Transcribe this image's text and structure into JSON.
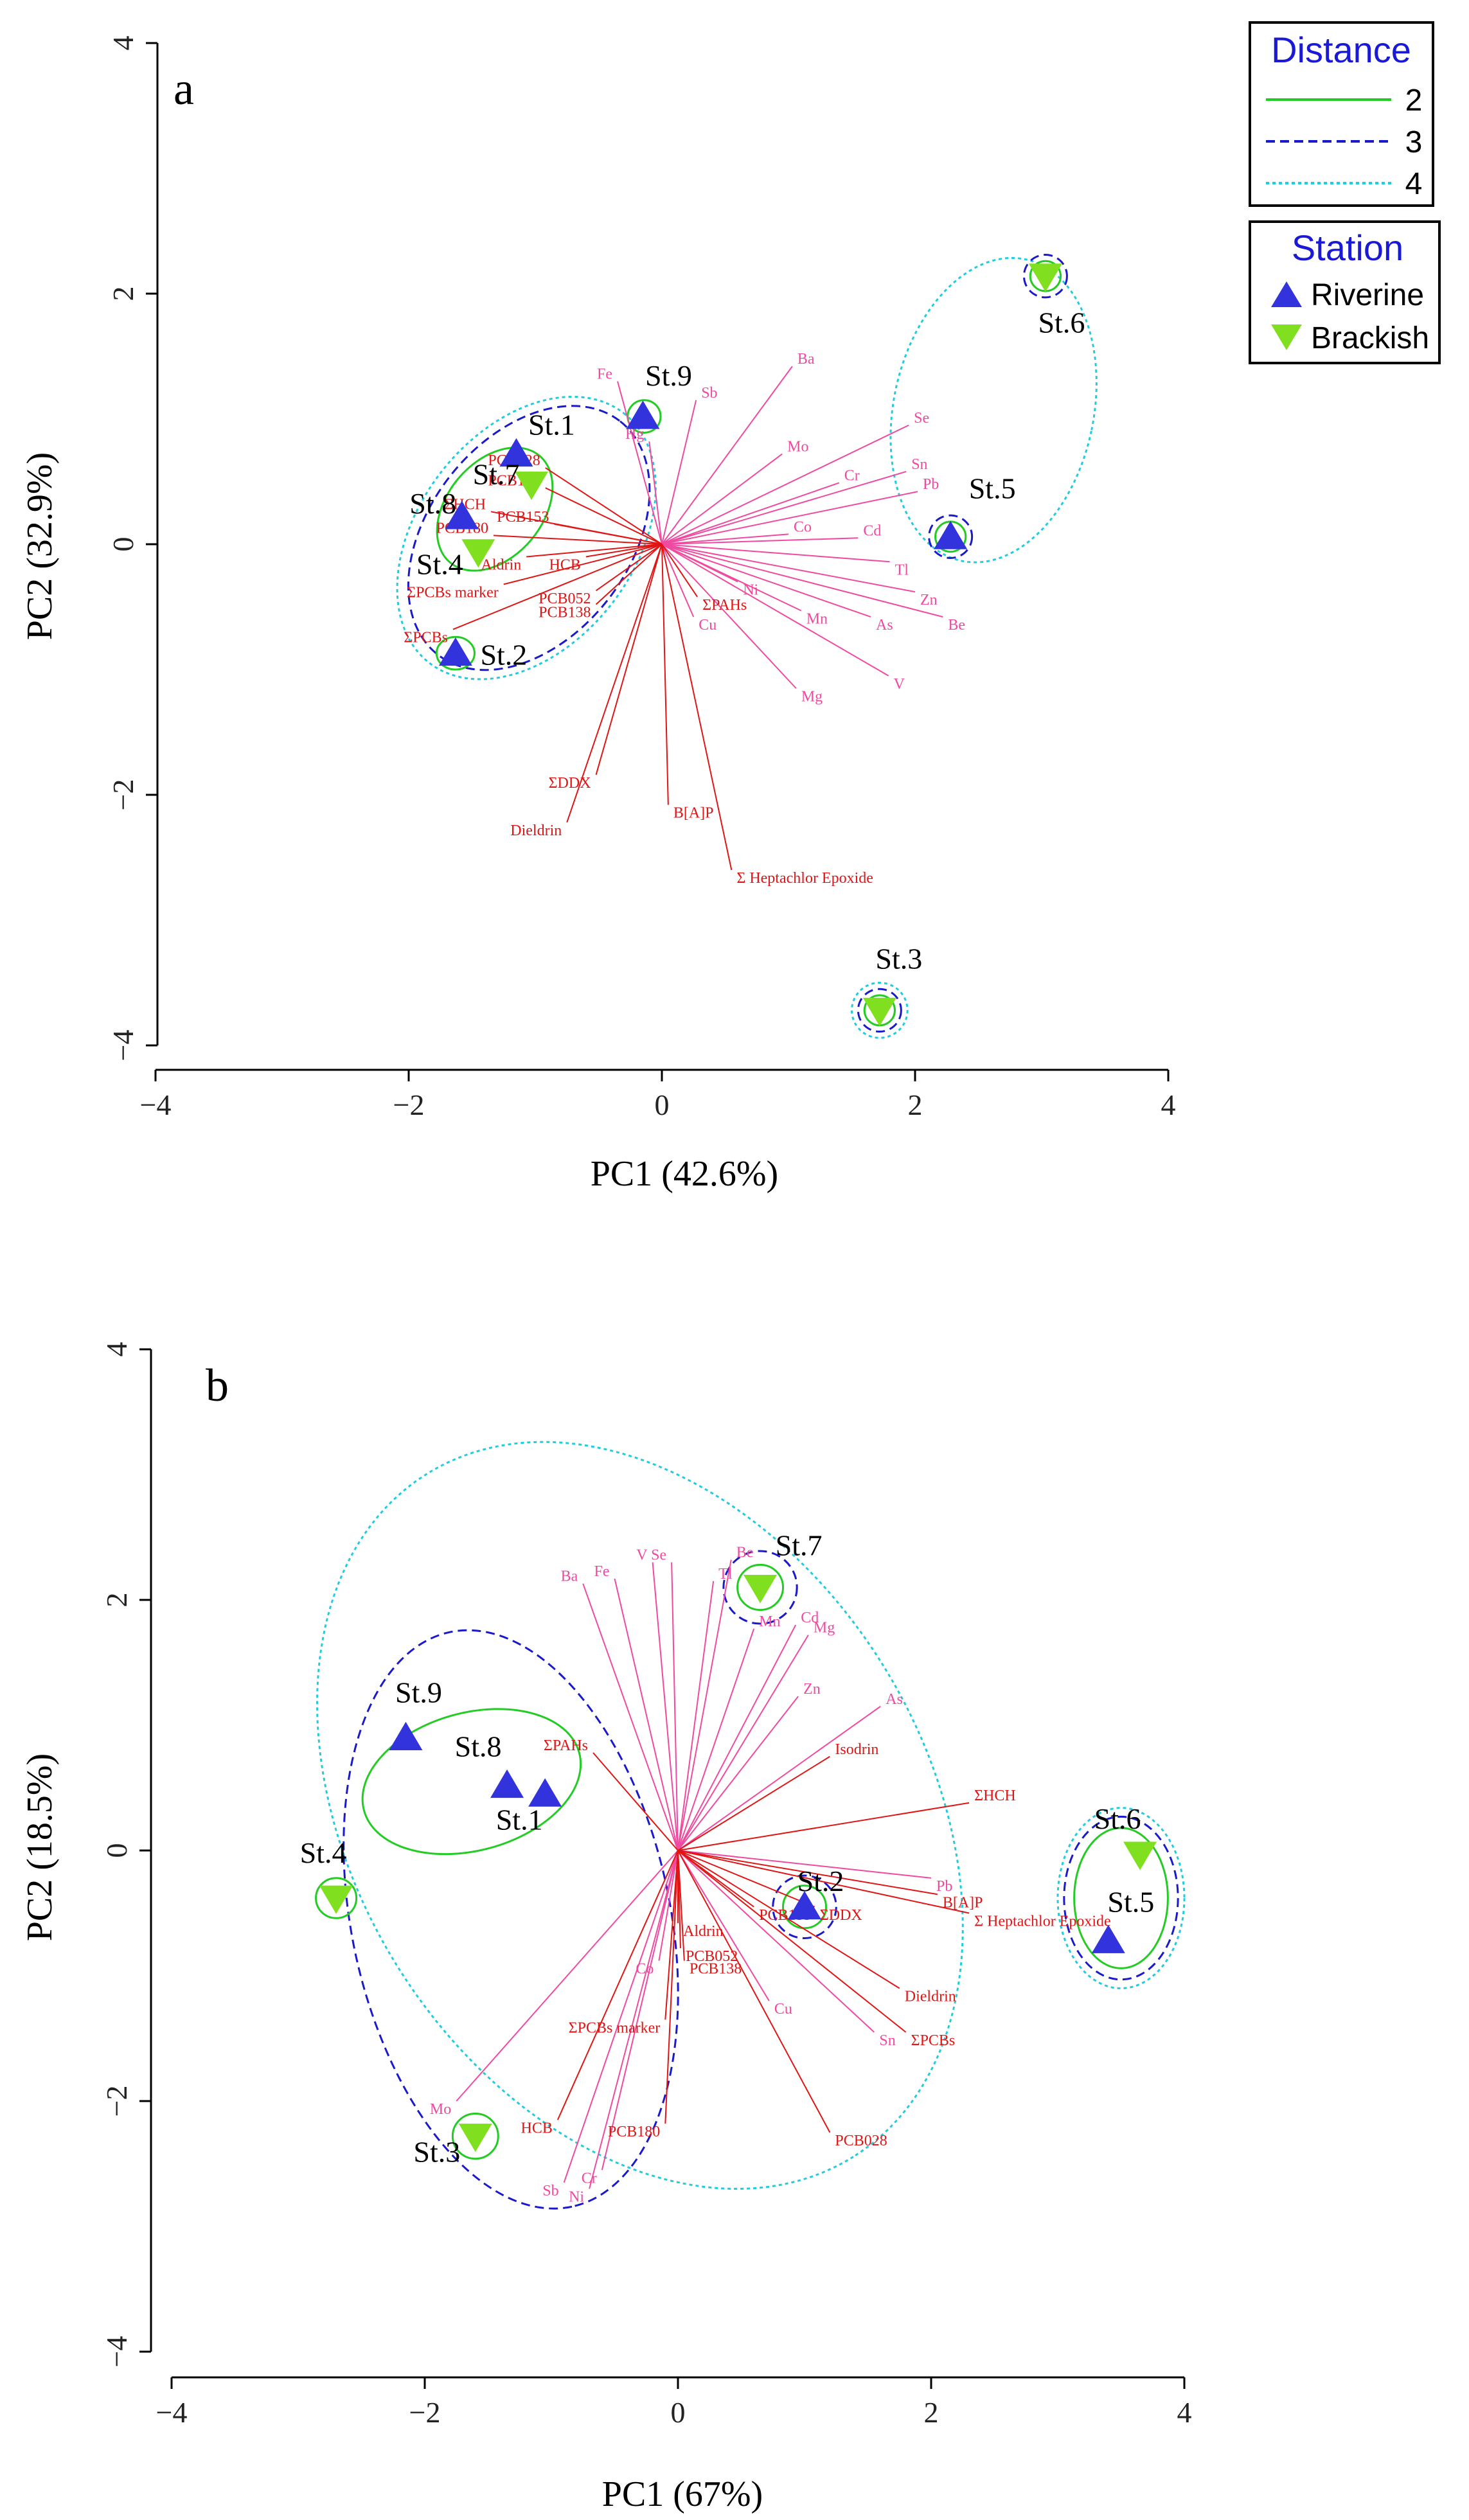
{
  "colors": {
    "metal_vector": "#f04aa0",
    "organic_vector": "#e01515",
    "riverine": "#3333dd",
    "brackish": "#80e020",
    "distance_2": "#22cc22",
    "distance_3": "#1a1acc",
    "distance_4": "#22ccdd"
  },
  "legend": {
    "distance_title": "Distance",
    "distance_items": [
      {
        "label": "2",
        "style": "solid",
        "color": "#22cc22"
      },
      {
        "label": "3",
        "style": "dashed",
        "color": "#1a1acc"
      },
      {
        "label": "4",
        "style": "dotted",
        "color": "#22ccdd"
      }
    ],
    "station_title": "Station",
    "station_items": [
      {
        "label": "Riverine",
        "marker": "triangle-up"
      },
      {
        "label": "Brackish",
        "marker": "triangle-down"
      }
    ]
  },
  "chart_data": [
    {
      "type": "scatter",
      "panel_label": "a",
      "xlabel": "PC1 (42.6%)",
      "ylabel": "PC2 (32.9%)",
      "xlim": [
        -4,
        4
      ],
      "ylim": [
        -4,
        4
      ],
      "xticks": [
        -4,
        -2,
        0,
        2,
        4
      ],
      "yticks": [
        -4,
        -2,
        0,
        2,
        4
      ],
      "stations": [
        {
          "label": "St.1",
          "type": "Riverine",
          "x": -1.15,
          "y": 0.72
        },
        {
          "label": "St.2",
          "type": "Riverine",
          "x": -1.63,
          "y": -0.87
        },
        {
          "label": "St.3",
          "type": "Brackish",
          "x": 1.72,
          "y": -3.72
        },
        {
          "label": "St.4",
          "type": "Brackish",
          "x": -1.45,
          "y": -0.06
        },
        {
          "label": "St.5",
          "type": "Riverine",
          "x": 2.28,
          "y": 0.06
        },
        {
          "label": "St.6",
          "type": "Brackish",
          "x": 3.03,
          "y": 2.14
        },
        {
          "label": "St.7",
          "type": "Brackish",
          "x": -1.03,
          "y": 0.48
        },
        {
          "label": "St.8",
          "type": "Riverine",
          "x": -1.58,
          "y": 0.22
        },
        {
          "label": "St.9",
          "type": "Riverine",
          "x": -0.15,
          "y": 1.02
        }
      ],
      "loadings": [
        {
          "name": "Ba",
          "group": "metal",
          "x": 1.03,
          "y": 1.42
        },
        {
          "name": "Fe",
          "group": "metal",
          "x": -0.35,
          "y": 1.3
        },
        {
          "name": "Sb",
          "group": "metal",
          "x": 0.27,
          "y": 1.15
        },
        {
          "name": "Hg",
          "group": "metal",
          "x": -0.1,
          "y": 0.82
        },
        {
          "name": "Mo",
          "group": "metal",
          "x": 0.95,
          "y": 0.72
        },
        {
          "name": "Se",
          "group": "metal",
          "x": 1.95,
          "y": 0.95
        },
        {
          "name": "Sn",
          "group": "metal",
          "x": 1.93,
          "y": 0.58
        },
        {
          "name": "Cr",
          "group": "metal",
          "x": 1.4,
          "y": 0.49
        },
        {
          "name": "Pb",
          "group": "metal",
          "x": 2.02,
          "y": 0.42
        },
        {
          "name": "Co",
          "group": "metal",
          "x": 1.0,
          "y": 0.08
        },
        {
          "name": "Cd",
          "group": "metal",
          "x": 1.55,
          "y": 0.05
        },
        {
          "name": "Tl",
          "group": "metal",
          "x": 1.8,
          "y": -0.14
        },
        {
          "name": "Ni",
          "group": "metal",
          "x": 0.6,
          "y": -0.3
        },
        {
          "name": "Zn",
          "group": "metal",
          "x": 2.0,
          "y": -0.38
        },
        {
          "name": "Mn",
          "group": "metal",
          "x": 1.1,
          "y": -0.53
        },
        {
          "name": "As",
          "group": "metal",
          "x": 1.65,
          "y": -0.58
        },
        {
          "name": "Be",
          "group": "metal",
          "x": 2.22,
          "y": -0.58
        },
        {
          "name": "Cu",
          "group": "metal",
          "x": 0.25,
          "y": -0.58
        },
        {
          "name": "V",
          "group": "metal",
          "x": 1.79,
          "y": -1.05
        },
        {
          "name": "Mg",
          "group": "metal",
          "x": 1.06,
          "y": -1.15
        },
        {
          "name": "PCB028",
          "group": "organic",
          "x": -0.92,
          "y": 0.61
        },
        {
          "name": "PCB101",
          "group": "organic",
          "x": -0.92,
          "y": 0.45
        },
        {
          "name": "ΣHCH",
          "group": "organic",
          "x": -1.35,
          "y": 0.26
        },
        {
          "name": "PCB153",
          "group": "organic",
          "x": -0.85,
          "y": 0.16
        },
        {
          "name": "PCB180",
          "group": "organic",
          "x": -1.33,
          "y": 0.07
        },
        {
          "name": "Aldrin",
          "group": "organic",
          "x": -1.07,
          "y": -0.1
        },
        {
          "name": "HCB",
          "group": "organic",
          "x": -0.6,
          "y": -0.1
        },
        {
          "name": "ΣPCBs marker",
          "group": "organic",
          "x": -1.25,
          "y": -0.32
        },
        {
          "name": "PCB052",
          "group": "organic",
          "x": -0.52,
          "y": -0.37
        },
        {
          "name": "PCB138",
          "group": "organic",
          "x": -0.52,
          "y": -0.48
        },
        {
          "name": "ΣPAHs",
          "group": "organic",
          "x": 0.28,
          "y": -0.42
        },
        {
          "name": "ΣPCBs",
          "group": "organic",
          "x": -1.65,
          "y": -0.68
        },
        {
          "name": "ΣDDX",
          "group": "organic",
          "x": -0.52,
          "y": -1.84
        },
        {
          "name": "B[A]P",
          "group": "organic",
          "x": 0.05,
          "y": -2.08
        },
        {
          "name": "Dieldrin",
          "group": "organic",
          "x": -0.75,
          "y": -2.22
        },
        {
          "name": "Σ Heptachlor Epoxide",
          "group": "organic",
          "x": 0.55,
          "y": -2.6
        }
      ],
      "ellipses": [
        {
          "distance": "4",
          "cx": -1.07,
          "cy": 0.05,
          "rx": 1.25,
          "ry": 0.86,
          "angle": -52
        },
        {
          "distance": "3",
          "cx": -1.05,
          "cy": 0.05,
          "rx": 1.17,
          "ry": 0.8,
          "angle": -52
        },
        {
          "distance": "2",
          "cx": -1.32,
          "cy": 0.28,
          "rx": 0.55,
          "ry": 0.38,
          "angle": -50
        },
        {
          "distance": "2",
          "cx": -0.14,
          "cy": 1.02,
          "rx": 0.13,
          "ry": 0.13,
          "angle": 0
        },
        {
          "distance": "2",
          "cx": -1.63,
          "cy": -0.87,
          "rx": 0.15,
          "ry": 0.13,
          "angle": 0
        },
        {
          "distance": "4",
          "cx": 2.62,
          "cy": 1.07,
          "rx": 0.79,
          "ry": 1.23,
          "angle": 12
        },
        {
          "distance": "4",
          "cx": 1.72,
          "cy": -3.72,
          "rx": 0.22,
          "ry": 0.22,
          "angle": 0
        },
        {
          "distance": "3",
          "cx": 1.72,
          "cy": -3.72,
          "rx": 0.17,
          "ry": 0.17,
          "angle": 0
        },
        {
          "distance": "2",
          "cx": 1.72,
          "cy": -3.72,
          "rx": 0.12,
          "ry": 0.12,
          "angle": 0
        },
        {
          "distance": "3",
          "cx": 3.03,
          "cy": 2.14,
          "rx": 0.17,
          "ry": 0.17,
          "angle": 0
        },
        {
          "distance": "2",
          "cx": 3.03,
          "cy": 2.14,
          "rx": 0.12,
          "ry": 0.12,
          "angle": 0
        },
        {
          "distance": "3",
          "cx": 2.28,
          "cy": 0.06,
          "rx": 0.17,
          "ry": 0.17,
          "angle": 0
        },
        {
          "distance": "2",
          "cx": 2.28,
          "cy": 0.06,
          "rx": 0.12,
          "ry": 0.12,
          "angle": 0
        }
      ]
    },
    {
      "type": "scatter",
      "panel_label": "b",
      "xlabel": "PC1 (67%)",
      "ylabel": "PC2 (18.5%)",
      "xlim": [
        -4,
        4
      ],
      "ylim": [
        -4,
        4
      ],
      "xticks": [
        -4,
        -2,
        0,
        2,
        4
      ],
      "yticks": [
        -4,
        -2,
        0,
        2,
        4
      ],
      "stations": [
        {
          "label": "St.1",
          "type": "Riverine",
          "x": -1.05,
          "y": 0.45
        },
        {
          "label": "St.2",
          "type": "Riverine",
          "x": 1.0,
          "y": -0.45
        },
        {
          "label": "St.3",
          "type": "Brackish",
          "x": -1.6,
          "y": -2.28
        },
        {
          "label": "St.4",
          "type": "Brackish",
          "x": -2.7,
          "y": -0.38
        },
        {
          "label": "St.5",
          "type": "Riverine",
          "x": 3.4,
          "y": -0.72
        },
        {
          "label": "St.6",
          "type": "Brackish",
          "x": 3.65,
          "y": -0.03
        },
        {
          "label": "St.7",
          "type": "Brackish",
          "x": 0.65,
          "y": 2.1
        },
        {
          "label": "St.8",
          "type": "Riverine",
          "x": -1.35,
          "y": 0.52
        },
        {
          "label": "St.9",
          "type": "Riverine",
          "x": -2.15,
          "y": 0.9
        }
      ],
      "loadings": [
        {
          "name": "Ba",
          "group": "metal",
          "x": -0.75,
          "y": 2.13
        },
        {
          "name": "Fe",
          "group": "metal",
          "x": -0.5,
          "y": 2.17
        },
        {
          "name": "V",
          "group": "metal",
          "x": -0.2,
          "y": 2.3
        },
        {
          "name": "Se",
          "group": "metal",
          "x": -0.05,
          "y": 2.3
        },
        {
          "name": "Be",
          "group": "metal",
          "x": 0.42,
          "y": 2.32
        },
        {
          "name": "Tl",
          "group": "metal",
          "x": 0.28,
          "y": 2.15
        },
        {
          "name": "Mn",
          "group": "metal",
          "x": 0.6,
          "y": 1.77
        },
        {
          "name": "Cd",
          "group": "metal",
          "x": 0.93,
          "y": 1.8
        },
        {
          "name": "Mg",
          "group": "metal",
          "x": 1.03,
          "y": 1.72
        },
        {
          "name": "Zn",
          "group": "metal",
          "x": 0.95,
          "y": 1.23
        },
        {
          "name": "As",
          "group": "metal",
          "x": 1.6,
          "y": 1.15
        },
        {
          "name": "Pb",
          "group": "metal",
          "x": 2.0,
          "y": -0.22
        },
        {
          "name": "Cu",
          "group": "metal",
          "x": 0.72,
          "y": -1.2
        },
        {
          "name": "Sn",
          "group": "metal",
          "x": 1.55,
          "y": -1.45
        },
        {
          "name": "Co",
          "group": "metal",
          "x": -0.15,
          "y": -0.88
        },
        {
          "name": "Mo",
          "group": "metal",
          "x": -1.75,
          "y": -2.0
        },
        {
          "name": "Sb",
          "group": "metal",
          "x": -0.9,
          "y": -2.65
        },
        {
          "name": "Ni",
          "group": "metal",
          "x": -0.7,
          "y": -2.7
        },
        {
          "name": "Cr",
          "group": "metal",
          "x": -0.6,
          "y": -2.55
        },
        {
          "name": "ΣPAHs",
          "group": "organic",
          "x": -0.67,
          "y": 0.78
        },
        {
          "name": "Isodrin",
          "group": "organic",
          "x": 1.2,
          "y": 0.75
        },
        {
          "name": "ΣHCH",
          "group": "organic",
          "x": 2.3,
          "y": 0.38
        },
        {
          "name": "B[A]P",
          "group": "organic",
          "x": 2.05,
          "y": -0.35
        },
        {
          "name": "Σ Heptachlor Epoxide",
          "group": "organic",
          "x": 2.3,
          "y": -0.5
        },
        {
          "name": "ΣDDX",
          "group": "organic",
          "x": 1.08,
          "y": -0.45
        },
        {
          "name": "PCB153",
          "group": "organic",
          "x": 0.6,
          "y": -0.45
        },
        {
          "name": "Aldrin",
          "group": "organic",
          "x": 0.0,
          "y": -0.58
        },
        {
          "name": "PCB052",
          "group": "organic",
          "x": 0.02,
          "y": -0.78
        },
        {
          "name": "PCB138",
          "group": "organic",
          "x": 0.05,
          "y": -0.88
        },
        {
          "name": "ΣPCBs marker",
          "group": "organic",
          "x": -0.1,
          "y": -1.35
        },
        {
          "name": "Dieldrin",
          "group": "organic",
          "x": 1.75,
          "y": -1.1
        },
        {
          "name": "ΣPCBs",
          "group": "organic",
          "x": 1.8,
          "y": -1.45
        },
        {
          "name": "HCB",
          "group": "organic",
          "x": -0.95,
          "y": -2.15
        },
        {
          "name": "PCB180",
          "group": "organic",
          "x": -0.1,
          "y": -2.18
        },
        {
          "name": "PCB028",
          "group": "organic",
          "x": 1.2,
          "y": -2.25
        }
      ],
      "ellipses": [
        {
          "distance": "4",
          "cx": -0.3,
          "cy": 0.28,
          "rx": 3.18,
          "ry": 2.28,
          "angle": 58
        },
        {
          "distance": "3",
          "cx": -1.32,
          "cy": -0.55,
          "rx": 2.32,
          "ry": 1.27,
          "angle": 78
        },
        {
          "distance": "2",
          "cx": -1.63,
          "cy": 0.55,
          "rx": 0.88,
          "ry": 0.55,
          "angle": -15
        },
        {
          "distance": "2",
          "cx": -2.7,
          "cy": -0.38,
          "rx": 0.16,
          "ry": 0.16,
          "angle": 0
        },
        {
          "distance": "2",
          "cx": -1.6,
          "cy": -2.28,
          "rx": 0.18,
          "ry": 0.18,
          "angle": 0
        },
        {
          "distance": "3",
          "cx": 0.65,
          "cy": 2.1,
          "rx": 0.29,
          "ry": 0.29,
          "angle": 0
        },
        {
          "distance": "2",
          "cx": 0.65,
          "cy": 2.1,
          "rx": 0.18,
          "ry": 0.18,
          "angle": 0
        },
        {
          "distance": "3",
          "cx": 1.0,
          "cy": -0.45,
          "rx": 0.25,
          "ry": 0.25,
          "angle": 0
        },
        {
          "distance": "2",
          "cx": 1.0,
          "cy": -0.45,
          "rx": 0.17,
          "ry": 0.17,
          "angle": 0
        },
        {
          "distance": "4",
          "cx": 3.5,
          "cy": -0.38,
          "rx": 0.5,
          "ry": 0.72,
          "angle": 0
        },
        {
          "distance": "3",
          "cx": 3.5,
          "cy": -0.38,
          "rx": 0.45,
          "ry": 0.65,
          "angle": 0
        },
        {
          "distance": "2",
          "cx": 3.5,
          "cy": -0.38,
          "rx": 0.37,
          "ry": 0.56,
          "angle": 0
        }
      ]
    }
  ]
}
